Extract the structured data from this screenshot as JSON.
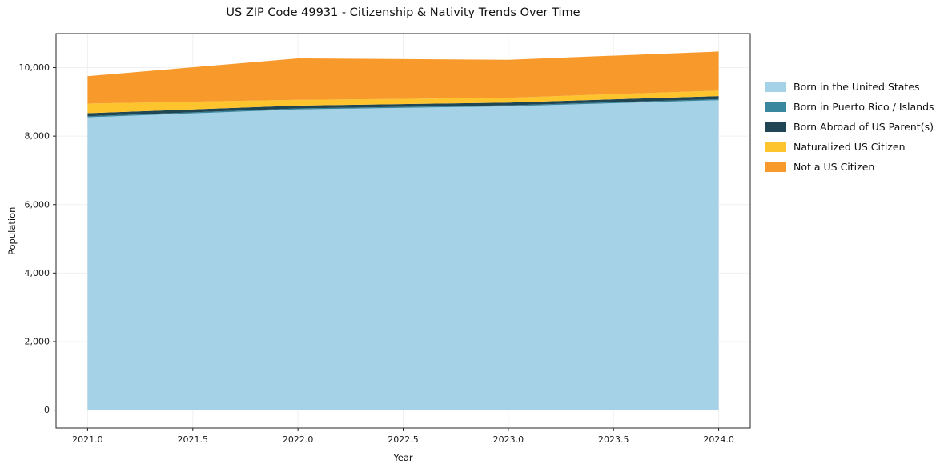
{
  "chart_data": {
    "type": "area",
    "stacked": true,
    "title": "US ZIP Code 49931 - Citizenship & Nativity Trends Over Time",
    "xlabel": "Year",
    "ylabel": "Population",
    "x": [
      2021,
      2022,
      2023,
      2024
    ],
    "series": [
      {
        "name": "Born in the United States",
        "color": "#a5d2e7",
        "values": [
          8550,
          8780,
          8870,
          9050
        ]
      },
      {
        "name": "Born in Puerto Rico / Islands",
        "color": "#39879f",
        "values": [
          30,
          30,
          30,
          30
        ]
      },
      {
        "name": "Born Abroad of US Parent(s)",
        "color": "#204553",
        "values": [
          90,
          80,
          80,
          90
        ]
      },
      {
        "name": "Naturalized US Citizen",
        "color": "#fdc42d",
        "values": [
          280,
          170,
          140,
          160
        ]
      },
      {
        "name": "Not a US Citizen",
        "color": "#f8992c",
        "values": [
          800,
          1210,
          1110,
          1140
        ]
      }
    ],
    "xlim": [
      2020.85,
      2024.15
    ],
    "ylim": [
      -523.5,
      10993.5
    ],
    "xticks": {
      "values": [
        2021,
        2021.5,
        2022,
        2022.5,
        2023,
        2023.5,
        2024
      ],
      "labels": [
        "2021.0",
        "2021.5",
        "2022.0",
        "2022.5",
        "2023.0",
        "2023.5",
        "2024.0"
      ]
    },
    "yticks": {
      "values": [
        0,
        2000,
        4000,
        6000,
        8000,
        10000
      ],
      "labels": [
        "0",
        "2,000",
        "4,000",
        "6,000",
        "8,000",
        "10,000"
      ]
    },
    "grid": true,
    "legend_position": "right"
  }
}
